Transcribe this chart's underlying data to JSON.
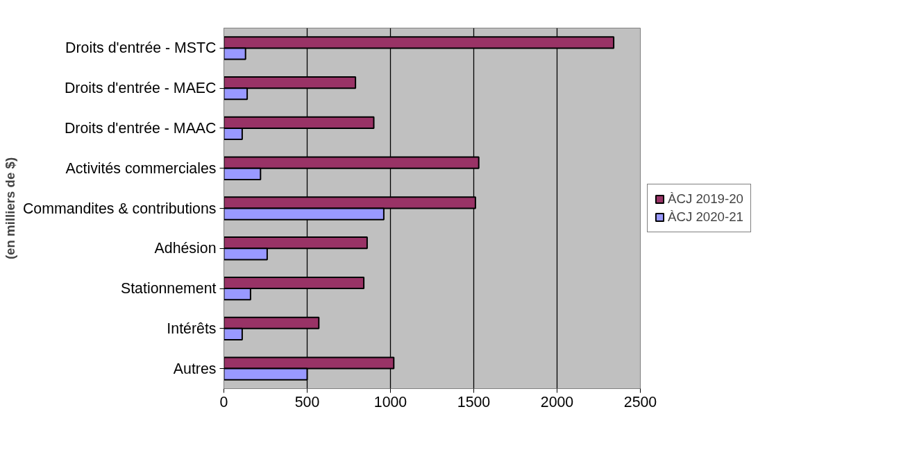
{
  "chart_data": {
    "type": "bar",
    "orientation": "horizontal",
    "ylabel": "(en milliers de $)",
    "categories": [
      "Droits d'entrée - MSTC",
      "Droits d'entrée - MAEC",
      "Droits d'entrée - MAAC",
      "Activités commerciales",
      "Commandites & contributions",
      "Adhésion",
      "Stationnement",
      "Intérêts",
      "Autres"
    ],
    "series": [
      {
        "name": "ÀCJ 2019-20",
        "color": "#993366",
        "values": [
          2340,
          790,
          900,
          1530,
          1510,
          860,
          840,
          570,
          1020
        ]
      },
      {
        "name": "ÀCJ 2020-21",
        "color": "#9999ff",
        "values": [
          130,
          140,
          110,
          220,
          960,
          260,
          160,
          110,
          500
        ]
      }
    ],
    "xlim": [
      0,
      2500
    ],
    "xticks": [
      0,
      500,
      1000,
      1500,
      2000,
      2500
    ],
    "grid": "x",
    "legend": "right"
  }
}
